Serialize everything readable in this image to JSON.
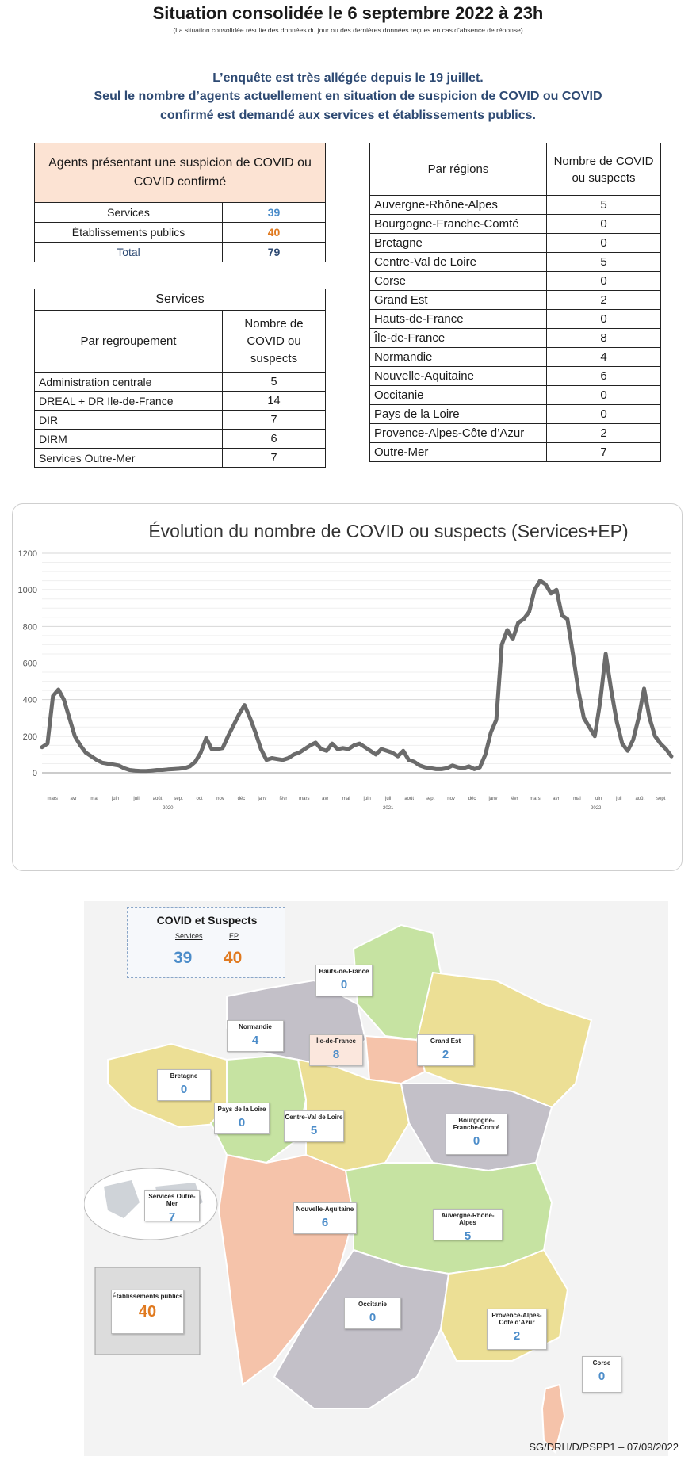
{
  "header": {
    "title": "Situation consolidée le 6 septembre 2022 à 23h",
    "subtitle": "(La situation consolidée résulte des données du jour ou des dernières données reçues en cas d’absence de réponse)",
    "notice_lines": [
      "L’enquête est très allégée depuis le 19 juillet.",
      "Seul le nombre d’agents actuellement en situation de suspicion de COVID ou COVID",
      "confirmé est demandé aux services et établissements publics."
    ]
  },
  "summary": {
    "heading": "Agents présentant une suspicion de COVID ou COVID confirmé",
    "rows": [
      {
        "label": "Services",
        "value": "39"
      },
      {
        "label": "Établissements publics",
        "value": "40"
      },
      {
        "label": "Total",
        "value": "79"
      }
    ]
  },
  "services": {
    "caption": "Services",
    "col1": "Par regroupement",
    "col2": "Nombre de COVID ou suspects",
    "rows": [
      {
        "label": "Administration centrale",
        "value": "5"
      },
      {
        "label": "DREAL + DR Ile-de-France",
        "value": "14"
      },
      {
        "label": "DIR",
        "value": "7"
      },
      {
        "label": "DIRM",
        "value": "6"
      },
      {
        "label": "Services Outre-Mer",
        "value": "7"
      }
    ]
  },
  "regions": {
    "col1": "Par régions",
    "col2": "Nombre de COVID ou suspects",
    "rows": [
      {
        "label": "Auvergne-Rhône-Alpes",
        "value": "5"
      },
      {
        "label": "Bourgogne-Franche-Comté",
        "value": "0"
      },
      {
        "label": "Bretagne",
        "value": "0"
      },
      {
        "label": "Centre-Val de Loire",
        "value": "5"
      },
      {
        "label": "Corse",
        "value": "0"
      },
      {
        "label": "Grand Est",
        "value": "2"
      },
      {
        "label": "Hauts-de-France",
        "value": "0"
      },
      {
        "label": "Île-de-France",
        "value": "8"
      },
      {
        "label": "Normandie",
        "value": "4"
      },
      {
        "label": "Nouvelle-Aquitaine",
        "value": "6"
      },
      {
        "label": "Occitanie",
        "value": "0"
      },
      {
        "label": "Pays de la Loire",
        "value": "0"
      },
      {
        "label": "Provence-Alpes-Côte d’Azur",
        "value": "2"
      },
      {
        "label": "Outre-Mer",
        "value": "7"
      }
    ]
  },
  "chart_data": {
    "type": "line",
    "title": "Évolution du nombre de COVID ou suspects (Services+EP)",
    "ylim": [
      0,
      1200
    ],
    "yticks": [
      0,
      200,
      400,
      600,
      800,
      1000,
      1200
    ],
    "grid": true,
    "month_labels": [
      "mars",
      "avr",
      "mai",
      "juin",
      "juil",
      "août",
      "sept",
      "oct",
      "nov",
      "déc",
      "janv",
      "févr",
      "mars",
      "avr",
      "mai",
      "juin",
      "juil",
      "août",
      "sept",
      "nov",
      "déc",
      "janv",
      "févr",
      "mars",
      "avr",
      "mai",
      "juin",
      "juil",
      "août",
      "sept"
    ],
    "year_labels": [
      "2020",
      "2021",
      "2022"
    ],
    "series": [
      {
        "color": "#6b6b6b",
        "values": [
          140,
          160,
          420,
          455,
          400,
          300,
          200,
          150,
          110,
          90,
          70,
          55,
          50,
          45,
          40,
          25,
          15,
          12,
          10,
          10,
          12,
          15,
          15,
          18,
          20,
          22,
          25,
          35,
          60,
          110,
          190,
          130,
          130,
          135,
          200,
          260,
          320,
          370,
          300,
          220,
          130,
          70,
          80,
          75,
          70,
          80,
          100,
          110,
          130,
          150,
          165,
          130,
          120,
          160,
          130,
          135,
          130,
          150,
          160,
          140,
          120,
          100,
          130,
          120,
          110,
          90,
          120,
          70,
          60,
          40,
          30,
          25,
          20,
          20,
          25,
          40,
          30,
          25,
          35,
          20,
          30,
          100,
          220,
          290,
          700,
          780,
          730,
          820,
          840,
          880,
          1000,
          1050,
          1030,
          980,
          1000,
          860,
          840,
          650,
          450,
          300,
          250,
          200,
          390,
          650,
          450,
          280,
          160,
          120,
          180,
          300,
          460,
          300,
          200,
          160,
          130,
          90
        ]
      }
    ]
  },
  "map": {
    "legend": {
      "title": "COVID et Suspects",
      "services_label": "Services",
      "ep_label": "EP",
      "services_value": "39",
      "ep_value": "40"
    },
    "regions": [
      {
        "name": "Hauts-de-France",
        "value": "0"
      },
      {
        "name": "Normandie",
        "value": "4"
      },
      {
        "name": "Île-de-France",
        "value": "8"
      },
      {
        "name": "Grand Est",
        "value": "2"
      },
      {
        "name": "Bretagne",
        "value": "0"
      },
      {
        "name": "Pays de la Loire",
        "value": "0"
      },
      {
        "name": "Centre-Val de Loire",
        "value": "5"
      },
      {
        "name": "Bourgogne-Franche-Comté",
        "value": "0"
      },
      {
        "name": "Services Outre-Mer",
        "value": "7"
      },
      {
        "name": "Nouvelle-Aquitaine",
        "value": "6"
      },
      {
        "name": "Auvergne-Rhône-Alpes",
        "value": "5"
      },
      {
        "name": "Établissements publics",
        "value": "40"
      },
      {
        "name": "Occitanie",
        "value": "0"
      },
      {
        "name": "Provence-Alpes-Côte d’Azur",
        "value": "2"
      },
      {
        "name": "Corse",
        "value": "0"
      }
    ],
    "colors": {
      "green": "#c6e3a2",
      "grey": "#c3c0c8",
      "yellow": "#ecdf95",
      "salmon": "#f5c3aa"
    }
  },
  "footer": "SG/DRH/D/PSPP1 – 07/09/2022"
}
